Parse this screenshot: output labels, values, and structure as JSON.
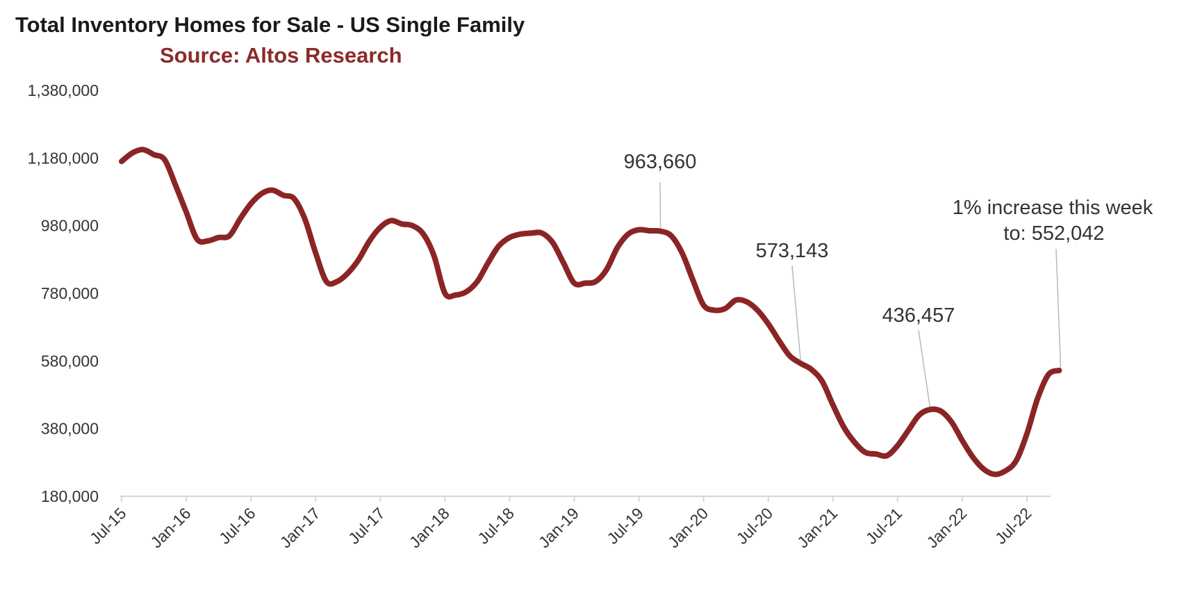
{
  "chart_data": {
    "type": "line",
    "title": "Total Inventory Homes for Sale - US Single Family",
    "subtitle": "Source: Altos Research",
    "xlabel": "",
    "ylabel": "",
    "ylim": [
      180000,
      1380000
    ],
    "xlim": [
      "2015-07",
      "2022-10"
    ],
    "grid": false,
    "y_ticks": [
      "1,380,000",
      "1,180,000",
      "980,000",
      "780,000",
      "580,000",
      "380,000",
      "180,000"
    ],
    "y_tick_values": [
      1380000,
      1180000,
      980000,
      780000,
      580000,
      380000,
      180000
    ],
    "x_ticks": [
      "Jul-15",
      "Jan-16",
      "Jul-16",
      "Jan-17",
      "Jul-17",
      "Jan-18",
      "Jul-18",
      "Jan-19",
      "Jul-19",
      "Jan-20",
      "Jul-20",
      "Jan-21",
      "Jul-21",
      "Jan-22",
      "Jul-22"
    ],
    "x_tick_dates": [
      "2015-07",
      "2016-01",
      "2016-07",
      "2017-01",
      "2017-07",
      "2018-01",
      "2018-07",
      "2019-01",
      "2019-07",
      "2020-01",
      "2020-07",
      "2021-01",
      "2021-07",
      "2022-01",
      "2022-07"
    ],
    "series": [
      {
        "color": "#8b2525",
        "points": [
          [
            "2015-07",
            1170000
          ],
          [
            "2015-08",
            1195000
          ],
          [
            "2015-09",
            1205000
          ],
          [
            "2015-10",
            1190000
          ],
          [
            "2015-11",
            1175000
          ],
          [
            "2015-12",
            1100000
          ],
          [
            "2016-01",
            1020000
          ],
          [
            "2016-02",
            940000
          ],
          [
            "2016-03",
            935000
          ],
          [
            "2016-04",
            945000
          ],
          [
            "2016-05",
            950000
          ],
          [
            "2016-06",
            1000000
          ],
          [
            "2016-07",
            1045000
          ],
          [
            "2016-08",
            1075000
          ],
          [
            "2016-09",
            1085000
          ],
          [
            "2016-10",
            1070000
          ],
          [
            "2016-11",
            1060000
          ],
          [
            "2016-12",
            1000000
          ],
          [
            "2017-01",
            900000
          ],
          [
            "2017-02",
            815000
          ],
          [
            "2017-03",
            815000
          ],
          [
            "2017-04",
            840000
          ],
          [
            "2017-05",
            880000
          ],
          [
            "2017-06",
            935000
          ],
          [
            "2017-07",
            975000
          ],
          [
            "2017-08",
            995000
          ],
          [
            "2017-09",
            985000
          ],
          [
            "2017-10",
            980000
          ],
          [
            "2017-11",
            955000
          ],
          [
            "2017-12",
            890000
          ],
          [
            "2018-01",
            780000
          ],
          [
            "2018-02",
            775000
          ],
          [
            "2018-03",
            785000
          ],
          [
            "2018-04",
            815000
          ],
          [
            "2018-05",
            870000
          ],
          [
            "2018-06",
            920000
          ],
          [
            "2018-07",
            945000
          ],
          [
            "2018-08",
            955000
          ],
          [
            "2018-09",
            958000
          ],
          [
            "2018-10",
            958000
          ],
          [
            "2018-11",
            930000
          ],
          [
            "2018-12",
            870000
          ],
          [
            "2019-01",
            810000
          ],
          [
            "2019-02",
            810000
          ],
          [
            "2019-03",
            815000
          ],
          [
            "2019-04",
            850000
          ],
          [
            "2019-05",
            915000
          ],
          [
            "2019-06",
            955000
          ],
          [
            "2019-07",
            968000
          ],
          [
            "2019-08",
            965000
          ],
          [
            "2019-09",
            963660
          ],
          [
            "2019-10",
            950000
          ],
          [
            "2019-11",
            900000
          ],
          [
            "2019-12",
            820000
          ],
          [
            "2020-01",
            745000
          ],
          [
            "2020-02",
            730000
          ],
          [
            "2020-03",
            735000
          ],
          [
            "2020-04",
            760000
          ],
          [
            "2020-05",
            755000
          ],
          [
            "2020-06",
            730000
          ],
          [
            "2020-07",
            690000
          ],
          [
            "2020-08",
            640000
          ],
          [
            "2020-09",
            595000
          ],
          [
            "2020-10",
            573143
          ],
          [
            "2020-11",
            555000
          ],
          [
            "2020-12",
            520000
          ],
          [
            "2021-01",
            450000
          ],
          [
            "2021-02",
            385000
          ],
          [
            "2021-03",
            340000
          ],
          [
            "2021-04",
            310000
          ],
          [
            "2021-05",
            305000
          ],
          [
            "2021-06",
            300000
          ],
          [
            "2021-07",
            330000
          ],
          [
            "2021-08",
            375000
          ],
          [
            "2021-09",
            420000
          ],
          [
            "2021-10",
            436457
          ],
          [
            "2021-11",
            432000
          ],
          [
            "2021-12",
            400000
          ],
          [
            "2022-01",
            345000
          ],
          [
            "2022-02",
            295000
          ],
          [
            "2022-03",
            260000
          ],
          [
            "2022-04",
            245000
          ],
          [
            "2022-05",
            255000
          ],
          [
            "2022-06",
            285000
          ],
          [
            "2022-07",
            365000
          ],
          [
            "2022-08",
            470000
          ],
          [
            "2022-09",
            540000
          ],
          [
            "2022-10",
            552042
          ]
        ]
      }
    ],
    "annotations": [
      {
        "text": "963,660",
        "date": "2019-09",
        "value": 963660
      },
      {
        "text": "573,143",
        "date": "2020-10",
        "value": 573143
      },
      {
        "text": "436,457",
        "date": "2021-10",
        "value": 436457
      },
      {
        "text": "1% increase this week",
        "text2": "to:  552,042",
        "date": "2022-10",
        "value": 552042
      }
    ]
  }
}
